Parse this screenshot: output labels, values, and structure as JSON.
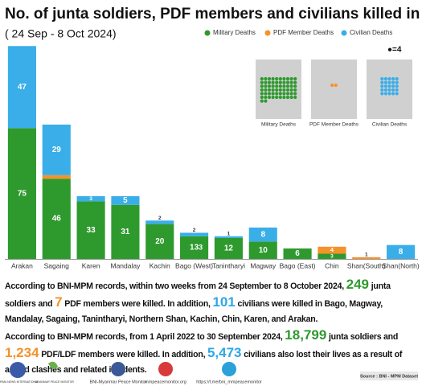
{
  "chart_data": {
    "type": "stacked_bar",
    "title": "No. of junta soldiers, PDF members and civilians killed in two weeks",
    "subtitle": "( 24 Sep - 8 Oct 2024)",
    "categories": [
      "Arakan",
      "Sagaing",
      "Karen",
      "Mandalay",
      "Kachin",
      "Bago (West)",
      "Tanintharyi",
      "Magway",
      "Bago (East)",
      "Chin",
      "Shan(South)",
      "Shan(North)"
    ],
    "series": [
      {
        "name": "Military Deaths",
        "color": "#2e9a2e",
        "values": [
          75,
          46,
          33,
          31,
          20,
          13,
          12,
          10,
          6,
          3,
          0,
          0
        ]
      },
      {
        "name": "PDF Member Deaths",
        "color": "#f5922a",
        "values": [
          0,
          2,
          0,
          0,
          0,
          0,
          0,
          0,
          0,
          4,
          1,
          0
        ]
      },
      {
        "name": "Civilian Deaths",
        "color": "#3aaee8",
        "values": [
          47,
          29,
          3,
          5,
          2,
          2,
          1,
          8,
          0,
          0,
          0,
          8
        ]
      }
    ],
    "annotations": [
      "3"
    ],
    "legend": "top-right",
    "waffle": {
      "unit_label": "●=4",
      "items": [
        {
          "label": "Military Deaths",
          "dots": 62
        },
        {
          "label": "PDF Member Deaths",
          "dots": 2
        },
        {
          "label": "Civilian Deaths",
          "dots": 25
        }
      ]
    }
  },
  "notes": [
    [
      {
        "t": "According to BNI-MPM records, within two weeks from 24 September to 8 October 2024, "
      },
      {
        "t": "249",
        "s": "m"
      },
      {
        "t": " junta soldiers and "
      },
      {
        "t": "7",
        "s": "p"
      },
      {
        "t": " PDF members were killed. In addition, "
      },
      {
        "t": "101",
        "s": "c"
      },
      {
        "t": " civilians were killed in Bago, Magway, Mandalay, Sagaing, Tanintharyi, Northern Shan, Kachin, Chin, Karen, and Arakan."
      }
    ],
    [
      {
        "t": "According to BNI-MPM records, from 1 April 2022 to 30 September 2024, "
      },
      {
        "t": "18,799",
        "s": "m"
      },
      {
        "t": " junta soldiers and "
      },
      {
        "t": "1,234",
        "s": "p"
      },
      {
        "t": " PDF/LDF members were killed. In addition, "
      },
      {
        "t": "5,473",
        "s": "c"
      },
      {
        "t": " civilians also lost their lives as a result of armed clashes and related incidents."
      }
    ]
  ],
  "footer": {
    "logo1": "BURMA NEWS INTERNATIONAL",
    "logo2": "MYANMAR PEACE MONITOR",
    "facebook": "BNI-Myanmar Peace Monitor",
    "website": "mmpeacemonitor.org",
    "telegram": "https://t.me/bni_mmpeacemonitor",
    "source": "Source : BNI - MPM Dataset"
  }
}
